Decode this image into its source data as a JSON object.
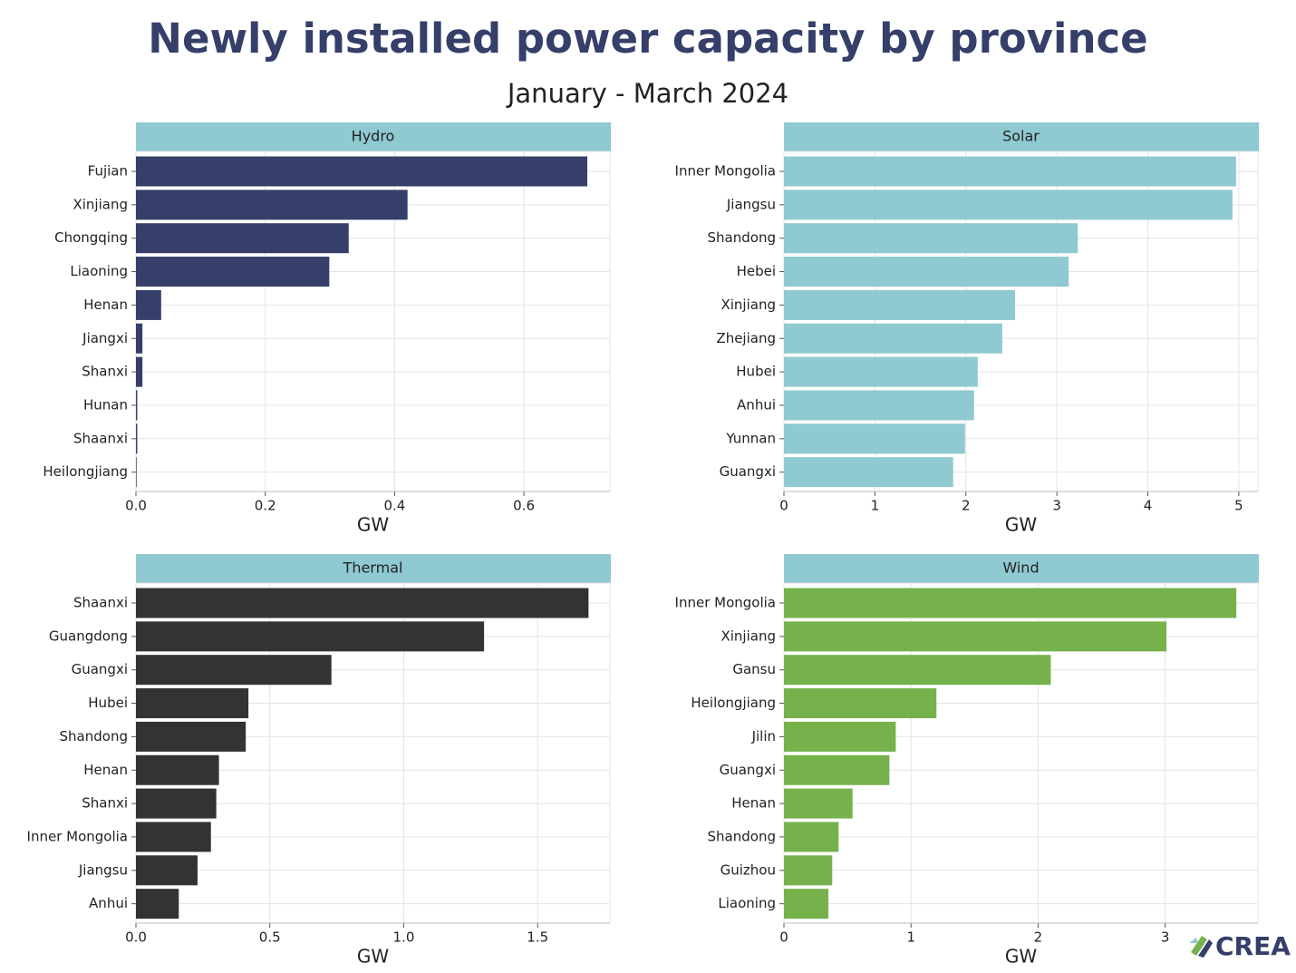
{
  "title": "Newly installed power capacity by province",
  "subtitle": "January - March 2024",
  "logo": "CREA",
  "chart_data": [
    {
      "type": "bar",
      "orientation": "horizontal",
      "title": "Hydro",
      "x_label": "GW",
      "color": "#353f69",
      "grid": true,
      "categories": [
        "Fujian",
        "Xinjiang",
        "Chongqing",
        "Liaoning",
        "Henan",
        "Jiangxi",
        "Shanxi",
        "Hunan",
        "Shaanxi",
        "Heilongjiang"
      ],
      "values": [
        0.698,
        0.42,
        0.329,
        0.299,
        0.039,
        0.01,
        0.01,
        0.002,
        0.002,
        0.001
      ],
      "xlim": [
        0,
        0.733
      ],
      "xticks": [
        {
          "value": 0,
          "label": "0.0"
        },
        0.2,
        0.4,
        0.6
      ]
    },
    {
      "type": "bar",
      "orientation": "horizontal",
      "title": "Solar",
      "x_label": "GW",
      "color": "#8fc9d1",
      "grid": true,
      "categories": [
        "Inner Mongolia",
        "Jiangsu",
        "Shandong",
        "Hebei",
        "Xinjiang",
        "Zhejiang",
        "Hubei",
        "Anhui",
        "Yunnan",
        "Guangxi"
      ],
      "values": [
        4.97,
        4.93,
        3.23,
        3.13,
        2.54,
        2.4,
        2.13,
        2.09,
        1.99,
        1.86
      ],
      "xlim": [
        0,
        5.21
      ],
      "xticks": [
        0,
        1,
        2,
        3,
        4,
        5
      ]
    },
    {
      "type": "bar",
      "orientation": "horizontal",
      "title": "Thermal",
      "x_label": "GW",
      "color": "#333333",
      "grid": true,
      "categories": [
        "Shaanxi",
        "Guangdong",
        "Guangxi",
        "Hubei",
        "Shandong",
        "Henan",
        "Shanxi",
        "Inner Mongolia",
        "Jiangsu",
        "Anhui"
      ],
      "values": [
        1.69,
        1.3,
        0.73,
        0.42,
        0.41,
        0.31,
        0.3,
        0.28,
        0.23,
        0.16
      ],
      "xlim": [
        0,
        1.77
      ],
      "xticks": [
        {
          "value": 0,
          "label": "0.0"
        },
        0.5,
        {
          "value": 1,
          "label": "1.0"
        },
        1.5
      ]
    },
    {
      "type": "bar",
      "orientation": "horizontal",
      "title": "Wind",
      "x_label": "GW",
      "color": "#76b24c",
      "grid": true,
      "categories": [
        "Inner Mongolia",
        "Xinjiang",
        "Gansu",
        "Heilongjiang",
        "Jilin",
        "Guangxi",
        "Henan",
        "Shandong",
        "Guizhou",
        "Liaoning"
      ],
      "values": [
        3.56,
        3.01,
        2.1,
        1.2,
        0.88,
        0.83,
        0.54,
        0.43,
        0.38,
        0.35
      ],
      "xlim": [
        0,
        3.73
      ],
      "xticks": [
        0,
        1,
        2,
        3
      ]
    }
  ]
}
